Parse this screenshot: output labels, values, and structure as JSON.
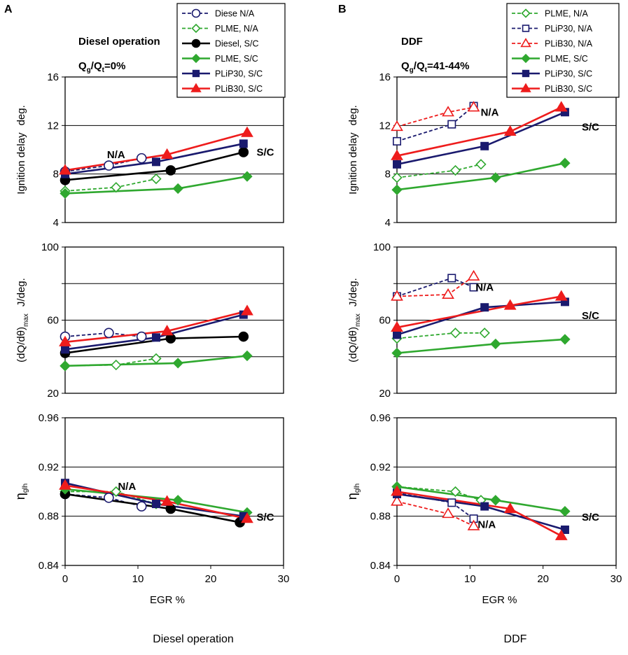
{
  "panels": [
    {
      "letter": "A",
      "title": "Diesel operation",
      "ratio_base": "Q",
      "ratio_sub1": "g",
      "ratio_mid": "/Q",
      "ratio_sub2": "t",
      "ratio_tail": "=0%",
      "xlabel": "EGR   %",
      "caption": "Diesel operation",
      "legend": [
        {
          "label": "Diese N/A",
          "color": "#1a1a6e",
          "dash": true,
          "marker": "circle",
          "filled": false
        },
        {
          "label": "PLME, N/A",
          "color": "#2fa82f",
          "dash": true,
          "marker": "diamond",
          "filled": false
        },
        {
          "label": "Diesel, S/C",
          "color": "#000000",
          "dash": false,
          "marker": "circle",
          "filled": true
        },
        {
          "label": "PLME, S/C",
          "color": "#2fa82f",
          "dash": false,
          "marker": "diamond",
          "filled": true
        },
        {
          "label": "PLiP30, S/C",
          "color": "#1a1a6e",
          "dash": false,
          "marker": "square",
          "filled": true
        },
        {
          "label": "PLiB30, S/C",
          "color": "#ee1c1c",
          "dash": false,
          "marker": "triangle",
          "filled": true
        }
      ]
    },
    {
      "letter": "B",
      "title": "DDF",
      "ratio_base": "Q",
      "ratio_sub1": "g",
      "ratio_mid": "/Q",
      "ratio_sub2": "t",
      "ratio_tail": "=41-44%",
      "xlabel": "EGR   %",
      "caption": "DDF",
      "legend": [
        {
          "label": "PLME, N/A",
          "color": "#2fa82f",
          "dash": true,
          "marker": "diamond",
          "filled": false
        },
        {
          "label": "PLiP30, N/A",
          "color": "#1a1a6e",
          "dash": true,
          "marker": "square",
          "filled": false
        },
        {
          "label": "PLiB30, N/A",
          "color": "#ee1c1c",
          "dash": true,
          "marker": "triangle",
          "filled": false
        },
        {
          "label": "PLME, S/C",
          "color": "#2fa82f",
          "dash": false,
          "marker": "diamond",
          "filled": true
        },
        {
          "label": "PLiP30, S/C",
          "color": "#1a1a6e",
          "dash": false,
          "marker": "square",
          "filled": true
        },
        {
          "label": "PLiB30, S/C",
          "color": "#ee1c1c",
          "dash": false,
          "marker": "triangle",
          "filled": true
        }
      ]
    }
  ],
  "rows": [
    {
      "ylabel_main": "Ignition delay",
      "ylabel_unit": "deg.",
      "ylabel_type": "ign"
    },
    {
      "ylabel_main": "(dQ/dθ)",
      "ylabel_sub": "max",
      "ylabel_unit": "J/deg.",
      "ylabel_type": "heat"
    },
    {
      "ylabel_main": "η",
      "ylabel_sub": "glh",
      "ylabel_type": "eff"
    }
  ],
  "chart_data": [
    {
      "type": "line",
      "panel": "A",
      "row": "ignition",
      "title": "Ignition delay (Diesel operation)",
      "xlabel": "EGR %",
      "ylabel": "Ignition delay deg.",
      "xlim": [
        0,
        30
      ],
      "ylim": [
        4,
        16
      ],
      "xticks": [
        0,
        10,
        20,
        30
      ],
      "yticks": [
        4,
        8,
        12,
        16
      ],
      "ytick_labels": [
        "4",
        "8",
        "12",
        "16"
      ],
      "annotations": [
        {
          "text": "N/A",
          "x": 7,
          "y": 9.3
        },
        {
          "text": "S/C",
          "x": 27.5,
          "y": 9.5
        }
      ],
      "series": [
        {
          "name": "Diese N/A",
          "x": [
            0,
            6,
            10.5
          ],
          "y": [
            8.2,
            8.7,
            9.3
          ]
        },
        {
          "name": "PLME, N/A",
          "x": [
            0,
            7,
            12.5
          ],
          "y": [
            6.6,
            6.9,
            7.6
          ]
        },
        {
          "name": "Diesel, S/C",
          "x": [
            0,
            14.5,
            24.5
          ],
          "y": [
            7.5,
            8.3,
            9.8
          ]
        },
        {
          "name": "PLME, S/C",
          "x": [
            0,
            15.5,
            25
          ],
          "y": [
            6.4,
            6.8,
            7.8
          ]
        },
        {
          "name": "PLiP30, S/C",
          "x": [
            0,
            12.5,
            24.5
          ],
          "y": [
            8.0,
            9.0,
            10.5
          ]
        },
        {
          "name": "PLiB30, S/C",
          "x": [
            0,
            14,
            25
          ],
          "y": [
            8.3,
            9.6,
            11.4
          ]
        }
      ]
    },
    {
      "type": "line",
      "panel": "A",
      "row": "heat",
      "title": "(dQ/dθ)max (Diesel operation)",
      "xlabel": "EGR %",
      "ylabel": "(dQ/dθ)max J/deg.",
      "xlim": [
        0,
        30
      ],
      "ylim": [
        20,
        100
      ],
      "xticks": [
        0,
        10,
        20,
        30
      ],
      "yticks": [
        20,
        40,
        60,
        80,
        100
      ],
      "ytick_labels": [
        "20",
        "",
        "60",
        "",
        "100"
      ],
      "annotations": [],
      "series": [
        {
          "name": "Diese N/A",
          "x": [
            0,
            6,
            10.5
          ],
          "y": [
            51,
            53,
            51
          ]
        },
        {
          "name": "PLME, N/A",
          "x": [
            0,
            7,
            12.5
          ],
          "y": [
            35,
            35.5,
            39
          ]
        },
        {
          "name": "Diesel, S/C",
          "x": [
            0,
            14.5,
            24.5
          ],
          "y": [
            42,
            50,
            51
          ]
        },
        {
          "name": "PLME, S/C",
          "x": [
            0,
            15.5,
            25
          ],
          "y": [
            35,
            36.5,
            40.5
          ]
        },
        {
          "name": "PLiP30, S/C",
          "x": [
            0,
            12.5,
            24.5
          ],
          "y": [
            44,
            50.5,
            63
          ]
        },
        {
          "name": "PLiB30, S/C",
          "x": [
            0,
            14,
            25
          ],
          "y": [
            48,
            54,
            65
          ]
        }
      ]
    },
    {
      "type": "line",
      "panel": "A",
      "row": "efficiency",
      "title": "η glh (Diesel operation)",
      "xlabel": "EGR %",
      "ylabel": "η glh",
      "xlim": [
        0,
        30
      ],
      "ylim": [
        0.84,
        0.96
      ],
      "xticks": [
        0,
        10,
        20,
        30
      ],
      "yticks": [
        0.84,
        0.88,
        0.92,
        0.96
      ],
      "ytick_labels": [
        "0.84",
        "0.88",
        "0.92",
        "0.96"
      ],
      "annotations": [
        {
          "text": "N/A",
          "x": 8.5,
          "y": 0.9015
        },
        {
          "text": "S/C",
          "x": 27.5,
          "y": 0.8765
        }
      ],
      "series": [
        {
          "name": "Diese N/A",
          "x": [
            0,
            6,
            10.5
          ],
          "y": [
            0.898,
            0.895,
            0.888
          ]
        },
        {
          "name": "PLME, N/A",
          "x": [
            0,
            7,
            12.5
          ],
          "y": [
            0.9,
            0.9,
            0.89
          ]
        },
        {
          "name": "Diesel, S/C",
          "x": [
            0,
            14.5,
            24
          ],
          "y": [
            0.898,
            0.886,
            0.875
          ]
        },
        {
          "name": "PLME, S/C",
          "x": [
            0,
            15.5,
            25
          ],
          "y": [
            0.902,
            0.893,
            0.883
          ]
        },
        {
          "name": "PLiP30, S/C",
          "x": [
            0,
            12.5,
            24.5
          ],
          "y": [
            0.907,
            0.89,
            0.88
          ]
        },
        {
          "name": "PLiB30, S/C",
          "x": [
            0,
            14,
            25
          ],
          "y": [
            0.905,
            0.892,
            0.878
          ]
        }
      ]
    },
    {
      "type": "line",
      "panel": "B",
      "row": "ignition",
      "title": "Ignition delay (DDF)",
      "xlabel": "EGR %",
      "ylabel": "Ignition delay deg.",
      "xlim": [
        0,
        30
      ],
      "ylim": [
        4,
        16
      ],
      "xticks": [
        0,
        10,
        20,
        30
      ],
      "yticks": [
        4,
        8,
        12,
        16
      ],
      "ytick_labels": [
        "4",
        "8",
        "12",
        "16"
      ],
      "annotations": [
        {
          "text": "N/A",
          "x": 12.7,
          "y": 12.8
        },
        {
          "text": "S/C",
          "x": 26.5,
          "y": 11.6
        }
      ],
      "series": [
        {
          "name": "PLME, N/A",
          "x": [
            0,
            8,
            11.5
          ],
          "y": [
            7.7,
            8.3,
            8.8
          ]
        },
        {
          "name": "PLiP30, N/A",
          "x": [
            0,
            7.5,
            10.5
          ],
          "y": [
            10.7,
            12.1,
            13.6
          ]
        },
        {
          "name": "PLiB30, N/A",
          "x": [
            0,
            7,
            10.5
          ],
          "y": [
            11.9,
            13.1,
            13.5
          ]
        },
        {
          "name": "PLME, S/C",
          "x": [
            0,
            13.5,
            23
          ],
          "y": [
            6.7,
            7.7,
            8.9
          ]
        },
        {
          "name": "PLiP30, S/C",
          "x": [
            0,
            12,
            23
          ],
          "y": [
            8.8,
            10.3,
            13.1
          ]
        },
        {
          "name": "PLiB30, S/C",
          "x": [
            0,
            15.5,
            22.5
          ],
          "y": [
            9.5,
            11.5,
            13.5
          ]
        }
      ]
    },
    {
      "type": "line",
      "panel": "B",
      "row": "heat",
      "title": "(dQ/dθ)max (DDF)",
      "xlabel": "EGR %",
      "ylabel": "(dQ/dθ)max J/deg.",
      "xlim": [
        0,
        30
      ],
      "ylim": [
        20,
        100
      ],
      "xticks": [
        0,
        10,
        20,
        30
      ],
      "yticks": [
        20,
        40,
        60,
        80,
        100
      ],
      "ytick_labels": [
        "20",
        "",
        "60",
        "",
        "100"
      ],
      "annotations": [
        {
          "text": "N/A",
          "x": 12,
          "y": 76
        },
        {
          "text": "S/C",
          "x": 26.5,
          "y": 60.5
        }
      ],
      "series": [
        {
          "name": "PLME, N/A",
          "x": [
            0,
            8,
            12
          ],
          "y": [
            50,
            53,
            53
          ]
        },
        {
          "name": "PLiP30, N/A",
          "x": [
            0,
            7.5,
            10.5
          ],
          "y": [
            73,
            83,
            78
          ]
        },
        {
          "name": "PLiB30, N/A",
          "x": [
            0,
            7,
            10.5
          ],
          "y": [
            73,
            74,
            84
          ]
        },
        {
          "name": "PLME, S/C",
          "x": [
            0,
            13.5,
            23
          ],
          "y": [
            42,
            47,
            49.5
          ]
        },
        {
          "name": "PLiP30, S/C",
          "x": [
            0,
            12,
            23
          ],
          "y": [
            52,
            67,
            70
          ]
        },
        {
          "name": "PLiB30, S/C",
          "x": [
            0,
            15.5,
            22.5
          ],
          "y": [
            56,
            68,
            73
          ]
        }
      ]
    },
    {
      "type": "line",
      "panel": "B",
      "row": "efficiency",
      "title": "η glh (DDF)",
      "xlabel": "EGR %",
      "ylabel": "η glh",
      "xlim": [
        0,
        30
      ],
      "ylim": [
        0.84,
        0.96
      ],
      "xticks": [
        0,
        10,
        20,
        30
      ],
      "yticks": [
        0.84,
        0.88,
        0.92,
        0.96
      ],
      "ytick_labels": [
        "0.84",
        "0.88",
        "0.92",
        "0.96"
      ],
      "annotations": [
        {
          "text": "N/A",
          "x": 12.3,
          "y": 0.8705
        },
        {
          "text": "S/C",
          "x": 26.5,
          "y": 0.8765
        }
      ],
      "series": [
        {
          "name": "PLME, N/A",
          "x": [
            0,
            8,
            11.5
          ],
          "y": [
            0.904,
            0.9,
            0.893
          ]
        },
        {
          "name": "PLiP30, N/A",
          "x": [
            0,
            7.5,
            10.5
          ],
          "y": [
            0.899,
            0.891,
            0.878
          ]
        },
        {
          "name": "PLiB30, N/A",
          "x": [
            0,
            7,
            10.5
          ],
          "y": [
            0.892,
            0.882,
            0.872
          ]
        },
        {
          "name": "PLME, S/C",
          "x": [
            0,
            13.5,
            23
          ],
          "y": [
            0.904,
            0.893,
            0.884
          ]
        },
        {
          "name": "PLiP30, S/C",
          "x": [
            0,
            12,
            23
          ],
          "y": [
            0.898,
            0.888,
            0.869
          ]
        },
        {
          "name": "PLiB30, S/C",
          "x": [
            0,
            15.5,
            22.5
          ],
          "y": [
            0.9,
            0.886,
            0.864
          ]
        }
      ]
    }
  ]
}
